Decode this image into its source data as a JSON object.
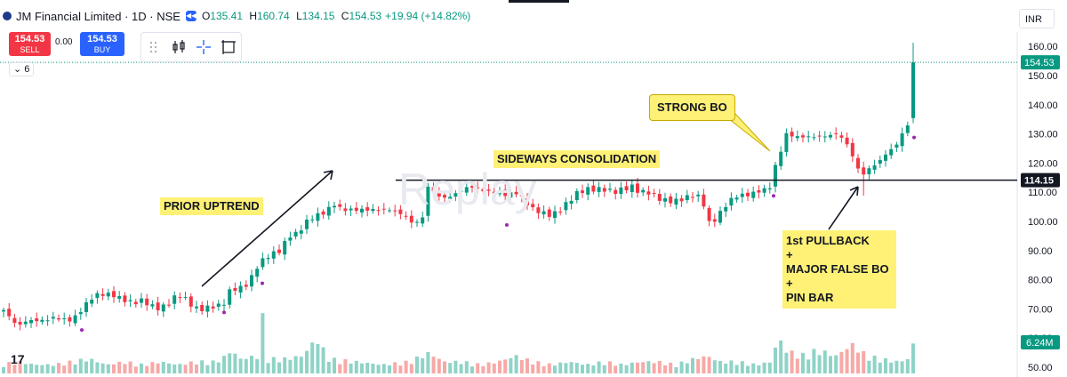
{
  "header": {
    "symbol": "JM Financial Limited · 1D · NSE",
    "o_label": "O",
    "o_value": "135.41",
    "h_label": "H",
    "h_value": "160.74",
    "l_label": "L",
    "l_value": "134.15",
    "c_label": "C",
    "c_value": "154.53",
    "change": "+19.94 (+14.82%)",
    "currency": "INR"
  },
  "trade": {
    "sell_price": "154.53",
    "sell_label": "SELL",
    "buy_price": "154.53",
    "buy_label": "BUY",
    "spread": "0.00"
  },
  "indicator_count": "6",
  "watermark": "Replay",
  "tv_logo": "17",
  "annotations": {
    "prior_uptrend": "PRIOR UPTREND",
    "sideways": "SIDEWAYS CONSOLIDATION",
    "strong_bo": "STRONG BO",
    "pullback": "1st PULLBACK\n+\nMAJOR FALSE BO\n+\nPIN BAR"
  },
  "colors": {
    "up": "#089981",
    "down": "#f23645",
    "vol_up": "#8fd3c7",
    "vol_down": "#f7a9a7",
    "highlight": "#fff176"
  },
  "chart_data": {
    "type": "candlestick",
    "symbol": "JM Financial Limited",
    "interval": "1D",
    "exchange": "NSE",
    "ylim": [
      47,
      162
    ],
    "y_ticks": [
      50,
      60,
      70,
      80,
      90,
      100,
      110,
      120,
      130,
      140,
      150,
      160
    ],
    "y_tick_labels": [
      "50.00",
      "60.00",
      "70.00",
      "80.00",
      "90.00",
      "100.00",
      "110.00",
      "120.00",
      "130.00",
      "140.00",
      "150.00",
      "160.00"
    ],
    "last_price": 154.53,
    "last_price_label": "154.53",
    "horizontal_line": 114.15,
    "horizontal_line_label": "114.15",
    "volume_label": "6.24M",
    "price_path": [
      [
        0,
        71
      ],
      [
        20,
        64
      ],
      [
        30,
        66
      ],
      [
        50,
        66
      ],
      [
        60,
        67
      ],
      [
        80,
        66
      ],
      [
        90,
        69
      ],
      [
        100,
        73
      ],
      [
        110,
        75
      ],
      [
        125,
        75
      ],
      [
        140,
        73
      ],
      [
        150,
        72
      ],
      [
        160,
        73
      ],
      [
        170,
        71
      ],
      [
        180,
        70
      ],
      [
        190,
        72
      ],
      [
        200,
        75
      ],
      [
        210,
        73
      ],
      [
        220,
        70
      ],
      [
        230,
        70
      ],
      [
        240,
        71
      ],
      [
        250,
        71
      ],
      [
        260,
        77
      ],
      [
        270,
        77
      ],
      [
        280,
        79
      ],
      [
        290,
        85
      ],
      [
        300,
        88
      ],
      [
        315,
        90
      ],
      [
        325,
        95
      ],
      [
        335,
        96
      ],
      [
        345,
        100
      ],
      [
        355,
        102
      ],
      [
        365,
        103
      ],
      [
        375,
        106
      ],
      [
        385,
        104
      ],
      [
        395,
        104
      ],
      [
        410,
        104
      ],
      [
        425,
        104
      ],
      [
        440,
        104
      ],
      [
        455,
        102
      ],
      [
        465,
        99
      ],
      [
        475,
        101
      ],
      [
        482,
        113
      ],
      [
        490,
        109
      ],
      [
        500,
        108
      ],
      [
        510,
        109
      ],
      [
        520,
        111
      ],
      [
        530,
        112
      ],
      [
        540,
        111
      ],
      [
        550,
        110
      ],
      [
        560,
        110
      ],
      [
        570,
        109
      ],
      [
        580,
        110
      ],
      [
        590,
        107
      ],
      [
        600,
        104
      ],
      [
        610,
        103
      ],
      [
        620,
        102
      ],
      [
        630,
        104
      ],
      [
        640,
        107
      ],
      [
        650,
        110
      ],
      [
        660,
        111
      ],
      [
        670,
        111
      ],
      [
        680,
        111
      ],
      [
        690,
        110
      ],
      [
        700,
        111
      ],
      [
        710,
        112
      ],
      [
        720,
        110
      ],
      [
        730,
        110
      ],
      [
        740,
        108
      ],
      [
        750,
        107
      ],
      [
        760,
        107
      ],
      [
        770,
        108
      ],
      [
        780,
        109
      ],
      [
        790,
        108
      ],
      [
        795,
        100
      ],
      [
        800,
        99
      ],
      [
        810,
        103
      ],
      [
        820,
        107
      ],
      [
        830,
        109
      ],
      [
        840,
        109
      ],
      [
        850,
        110
      ],
      [
        860,
        111
      ],
      [
        868,
        112
      ],
      [
        872,
        119
      ],
      [
        878,
        124
      ],
      [
        884,
        130
      ],
      [
        895,
        129
      ],
      [
        910,
        129
      ],
      [
        925,
        129
      ],
      [
        940,
        130
      ],
      [
        950,
        128
      ],
      [
        958,
        123
      ],
      [
        965,
        118
      ],
      [
        972,
        116
      ],
      [
        980,
        119
      ],
      [
        988,
        120
      ],
      [
        995,
        123
      ],
      [
        1005,
        125
      ],
      [
        1015,
        130
      ],
      [
        1022,
        134
      ],
      [
        1028,
        154.5
      ]
    ],
    "volume_path": [
      [
        0,
        3
      ],
      [
        20,
        4
      ],
      [
        40,
        3
      ],
      [
        60,
        3
      ],
      [
        80,
        4
      ],
      [
        100,
        5
      ],
      [
        120,
        3
      ],
      [
        140,
        4
      ],
      [
        160,
        3
      ],
      [
        180,
        4
      ],
      [
        200,
        3
      ],
      [
        220,
        4
      ],
      [
        240,
        4
      ],
      [
        250,
        5
      ],
      [
        260,
        8
      ],
      [
        270,
        5
      ],
      [
        290,
        6
      ],
      [
        296,
        20
      ],
      [
        300,
        5
      ],
      [
        320,
        5
      ],
      [
        340,
        6
      ],
      [
        356,
        12
      ],
      [
        370,
        5
      ],
      [
        400,
        4
      ],
      [
        430,
        3
      ],
      [
        460,
        4
      ],
      [
        482,
        7
      ],
      [
        500,
        4
      ],
      [
        520,
        4
      ],
      [
        540,
        3
      ],
      [
        560,
        4
      ],
      [
        580,
        6
      ],
      [
        600,
        4
      ],
      [
        620,
        3
      ],
      [
        640,
        4
      ],
      [
        660,
        3
      ],
      [
        680,
        4
      ],
      [
        700,
        3
      ],
      [
        720,
        4
      ],
      [
        740,
        4
      ],
      [
        760,
        3
      ],
      [
        780,
        5
      ],
      [
        795,
        6
      ],
      [
        810,
        4
      ],
      [
        830,
        4
      ],
      [
        850,
        3
      ],
      [
        868,
        4
      ],
      [
        872,
        9
      ],
      [
        878,
        11
      ],
      [
        884,
        8
      ],
      [
        900,
        6
      ],
      [
        920,
        8
      ],
      [
        940,
        6
      ],
      [
        958,
        10
      ],
      [
        975,
        6
      ],
      [
        990,
        5
      ],
      [
        1010,
        4
      ],
      [
        1022,
        5
      ],
      [
        1028,
        11
      ]
    ],
    "markers_below_lows": [
      [
        92,
        64
      ],
      [
        252,
        70
      ],
      [
        295,
        80
      ],
      [
        570,
        100
      ],
      [
        870,
        110
      ],
      [
        1028,
        130
      ]
    ]
  }
}
